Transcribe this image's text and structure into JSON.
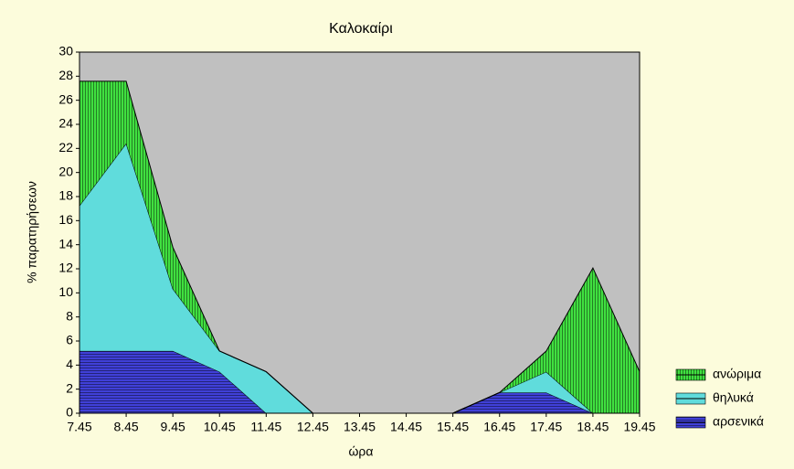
{
  "chart_data": {
    "type": "stacked_area",
    "title": "Καλοκαίρι",
    "xlabel": "ώρα",
    "ylabel": "% παρατηρήσεων",
    "categories": [
      "7.45",
      "8.45",
      "9.45",
      "10.45",
      "11.45",
      "12.45",
      "13.45",
      "14.45",
      "15.45",
      "16.45",
      "17.45",
      "18.45",
      "19.45"
    ],
    "series": [
      {
        "name": "αρσενικά",
        "color": "#4040d8",
        "hatch": "horizontal",
        "values": [
          5.17,
          5.17,
          5.17,
          3.45,
          0,
          0,
          0,
          0,
          0,
          1.72,
          1.72,
          0,
          0
        ]
      },
      {
        "name": "θηλυκά",
        "color": "#60dcdc",
        "hatch": "none",
        "values": [
          12.07,
          17.24,
          5.17,
          1.72,
          3.45,
          0,
          0,
          0,
          0,
          0,
          1.72,
          0,
          0
        ]
      },
      {
        "name": "ανώριμα",
        "color": "#40e040",
        "hatch": "vertical",
        "values": [
          10.34,
          5.17,
          3.45,
          0,
          0,
          0,
          0,
          0,
          0,
          0,
          1.72,
          12.07,
          3.45
        ]
      }
    ],
    "ylim": [
      0,
      30
    ],
    "yticks": [
      0,
      2,
      4,
      6,
      8,
      10,
      12,
      14,
      16,
      18,
      20,
      22,
      24,
      26,
      28,
      30
    ],
    "legend": "right",
    "plot_background": "#c0c0c0",
    "background": "#fcfcdc"
  }
}
